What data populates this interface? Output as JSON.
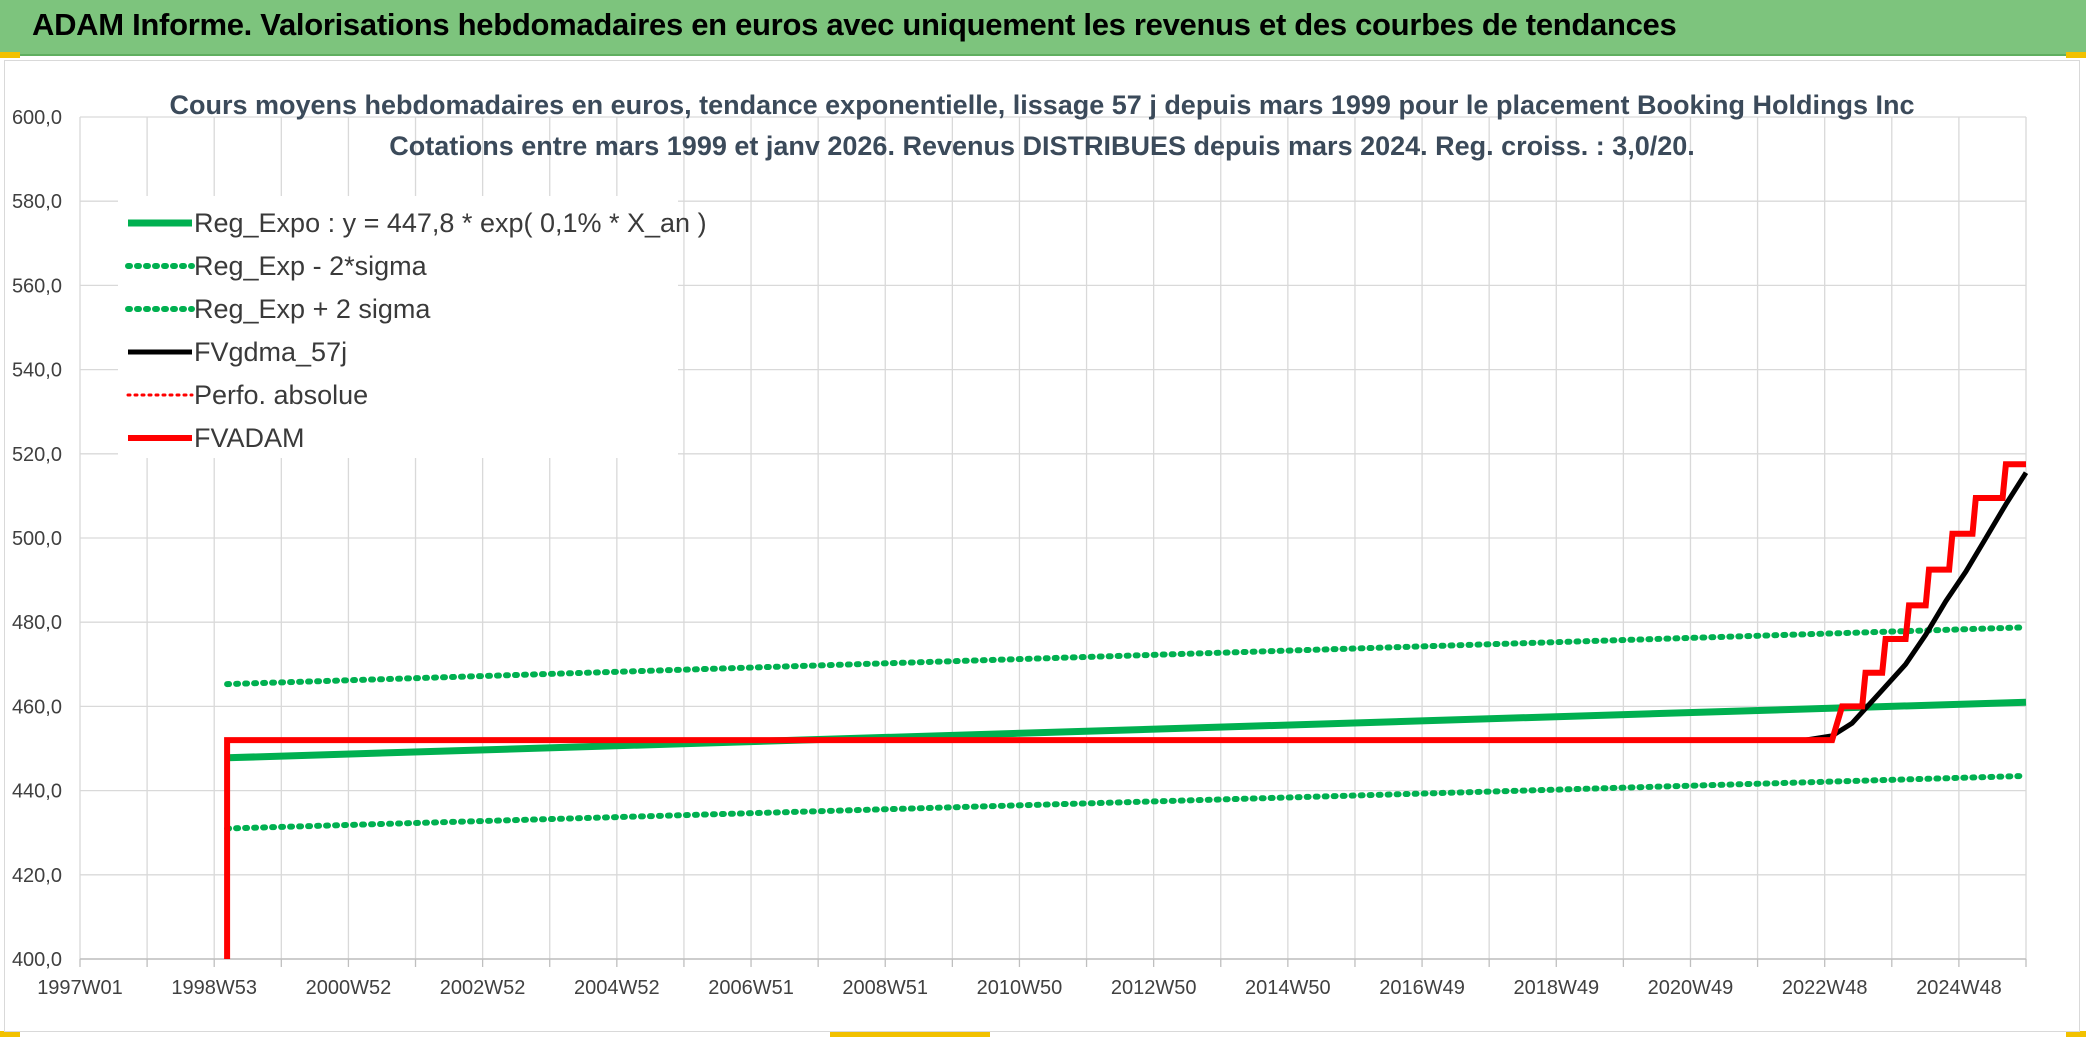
{
  "page_title": "ADAM Informe. Valorisations hebdomadaires en euros avec uniquement les revenus et des courbes de tendances",
  "colors": {
    "banner": "#7dc47d",
    "reg_expo": "#00b050",
    "fvgdma": "#000000",
    "fvadam": "#ff0000",
    "grid": "#d9d9d9"
  },
  "chart_data": {
    "type": "line",
    "title": "Cours moyens hebdomadaires en euros, tendance exponentielle, lissage 57 j depuis mars 1999 pour le placement Booking Holdings Inc",
    "subtitle": "Cotations entre mars 1999 et janv 2026. Revenus DISTRIBUES depuis mars 2024. Reg. croiss. : 3,0/20.",
    "xlabel": "",
    "ylabel": "",
    "ylim": [
      400,
      600
    ],
    "y_ticks": [
      "400,0",
      "420,0",
      "440,0",
      "460,0",
      "480,0",
      "500,0",
      "520,0",
      "540,0",
      "560,0",
      "580,0",
      "600,0"
    ],
    "x_ticks": [
      "1997W01",
      "1998W53",
      "2000W52",
      "2002W52",
      "2004W52",
      "2006W51",
      "2008W51",
      "2010W50",
      "2012W50",
      "2014W50",
      "2016W49",
      "2018W49",
      "2020W49",
      "2022W48",
      "2024W48"
    ],
    "xlim": [
      1997.0,
      2026.1
    ],
    "grid": true,
    "legend_position": "top-left",
    "series": [
      {
        "name": "Reg_Expo : y = 447,8 * exp( 0,1% *  X_an )",
        "style": "solid",
        "color": "#00b050",
        "points": [
          [
            1999.2,
            447.8
          ],
          [
            2026.1,
            461.0
          ]
        ]
      },
      {
        "name": "Reg_Exp - 2*sigma",
        "style": "dotted",
        "color": "#00b050",
        "points": [
          [
            1999.2,
            431.0
          ],
          [
            2026.1,
            443.5
          ]
        ]
      },
      {
        "name": "Reg_Exp + 2 sigma",
        "style": "dotted",
        "color": "#00b050",
        "points": [
          [
            1999.2,
            465.3
          ],
          [
            2026.1,
            478.8
          ]
        ]
      },
      {
        "name": "FVgdma_57j",
        "style": "solid",
        "color": "#000000",
        "points": [
          [
            1999.2,
            452.0
          ],
          [
            2022.8,
            452.0
          ],
          [
            2023.2,
            453.0
          ],
          [
            2023.5,
            456.0
          ],
          [
            2023.9,
            463.0
          ],
          [
            2024.3,
            470.0
          ],
          [
            2024.6,
            477.0
          ],
          [
            2024.9,
            485.0
          ],
          [
            2025.2,
            492.0
          ],
          [
            2025.5,
            500.0
          ],
          [
            2025.8,
            508.0
          ],
          [
            2026.1,
            515.5
          ]
        ]
      },
      {
        "name": "Perfo. absolue",
        "style": "dotted",
        "color": "#ff0000",
        "points": [
          [
            1999.2,
            452.0
          ],
          [
            2023.2,
            452.0
          ],
          [
            2023.35,
            460.0
          ],
          [
            2023.65,
            460.0
          ],
          [
            2023.7,
            468.0
          ],
          [
            2023.95,
            468.0
          ],
          [
            2024.0,
            476.0
          ],
          [
            2024.3,
            476.0
          ],
          [
            2024.35,
            484.0
          ],
          [
            2024.6,
            484.0
          ],
          [
            2024.65,
            492.5
          ],
          [
            2024.95,
            492.5
          ],
          [
            2025.0,
            501.0
          ],
          [
            2025.3,
            501.0
          ],
          [
            2025.35,
            509.5
          ],
          [
            2025.75,
            509.5
          ],
          [
            2025.8,
            517.5
          ],
          [
            2026.1,
            517.5
          ]
        ]
      },
      {
        "name": "FVADAM",
        "style": "solid",
        "color": "#ff0000",
        "points": [
          [
            1999.2,
            400.0
          ],
          [
            1999.2,
            452.0
          ],
          [
            2023.2,
            452.0
          ],
          [
            2023.35,
            460.0
          ],
          [
            2023.65,
            460.0
          ],
          [
            2023.7,
            468.0
          ],
          [
            2023.95,
            468.0
          ],
          [
            2024.0,
            476.0
          ],
          [
            2024.3,
            476.0
          ],
          [
            2024.35,
            484.0
          ],
          [
            2024.6,
            484.0
          ],
          [
            2024.65,
            492.5
          ],
          [
            2024.95,
            492.5
          ],
          [
            2025.0,
            501.0
          ],
          [
            2025.3,
            501.0
          ],
          [
            2025.35,
            509.5
          ],
          [
            2025.75,
            509.5
          ],
          [
            2025.8,
            517.5
          ],
          [
            2026.1,
            517.5
          ]
        ]
      }
    ]
  }
}
